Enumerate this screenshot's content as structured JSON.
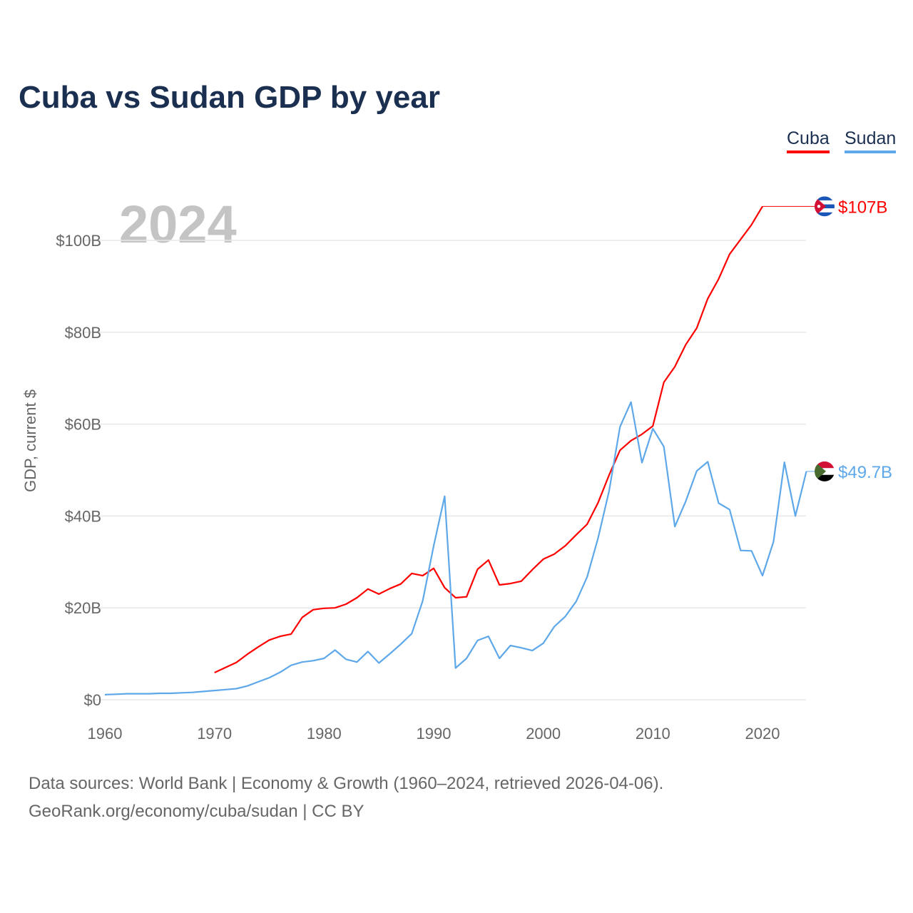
{
  "chart_data": {
    "type": "line",
    "title": "Cuba vs Sudan GDP by year",
    "ylabel": "GDP, current $",
    "xlabel": "",
    "year_watermark": "2024",
    "xlim": [
      1960,
      2024
    ],
    "ylim": [
      0,
      110
    ],
    "x_ticks": [
      1960,
      1970,
      1980,
      1990,
      2000,
      2010,
      2020
    ],
    "x_tick_labels": [
      "1960",
      "1970",
      "1980",
      "1990",
      "2000",
      "2010",
      "2020"
    ],
    "y_ticks": [
      0,
      20,
      40,
      60,
      80,
      100
    ],
    "y_tick_labels": [
      "$0",
      "$20B",
      "$40B",
      "$60B",
      "$80B",
      "$100B"
    ],
    "grid": true,
    "legend_position": "top-right",
    "series": [
      {
        "name": "Cuba",
        "color": "#ff0000",
        "end_label": "$107B",
        "flag": "cuba-flag",
        "x_start": 1970,
        "values": [
          5.9,
          7.0,
          8.1,
          9.9,
          11.5,
          13.0,
          13.8,
          14.3,
          17.9,
          19.6,
          19.9,
          20.0,
          20.8,
          22.2,
          24.1,
          23.0,
          24.2,
          25.2,
          27.5,
          27.0,
          28.6,
          24.4,
          22.2,
          22.4,
          28.4,
          30.4,
          25.0,
          25.3,
          25.8,
          28.3,
          30.6,
          31.7,
          33.5,
          35.9,
          38.2,
          42.9,
          48.9,
          54.3,
          56.4,
          57.8,
          59.6,
          69.1,
          72.5,
          77.3,
          80.9,
          87.3,
          91.6,
          97.0,
          100.2,
          103.4,
          107.4
        ]
      },
      {
        "name": "Sudan",
        "color": "#5ea8ea",
        "end_label": "$49.7B",
        "flag": "sudan-flag",
        "x_start": 1960,
        "values": [
          1.1,
          1.2,
          1.3,
          1.3,
          1.3,
          1.4,
          1.4,
          1.5,
          1.6,
          1.8,
          2.0,
          2.2,
          2.4,
          3.0,
          3.9,
          4.8,
          6.0,
          7.5,
          8.2,
          8.5,
          9.0,
          10.8,
          8.8,
          8.2,
          10.5,
          8.0,
          10.0,
          12.1,
          14.4,
          21.5,
          33.5,
          44.3,
          6.9,
          9.0,
          12.9,
          13.8,
          9.0,
          11.8,
          11.3,
          10.7,
          12.3,
          15.9,
          18.1,
          21.4,
          26.7,
          35.2,
          45.4,
          59.4,
          64.8,
          51.6,
          59.0,
          55.1,
          37.7,
          43.2,
          49.8,
          51.8,
          42.8,
          41.4,
          32.5,
          32.4,
          27.0,
          34.4,
          51.7,
          40.0,
          49.7
        ]
      }
    ]
  },
  "footer": {
    "line1": "Data sources: World Bank | Economy & Growth (1960–2024, retrieved 2026-04-06).",
    "line2": "GeoRank.org/economy/cuba/sudan | CC BY"
  }
}
